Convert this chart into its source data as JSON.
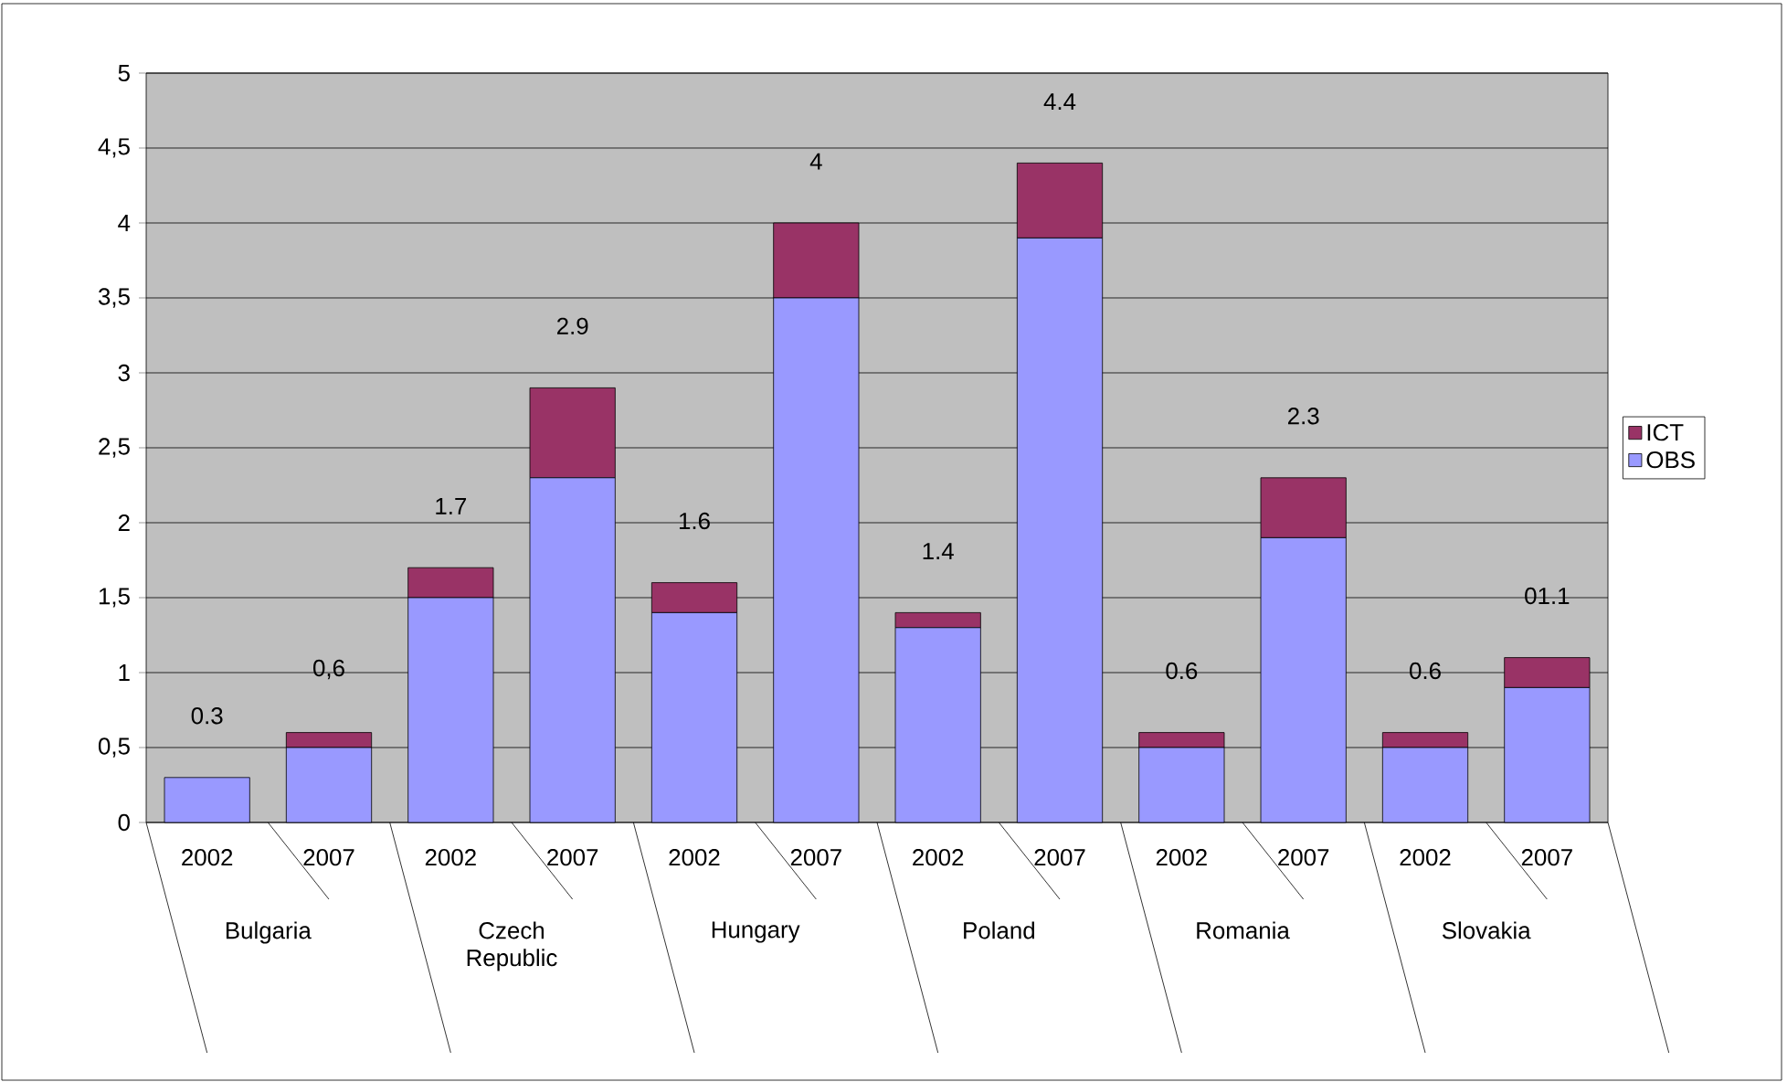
{
  "chart_data": {
    "type": "bar",
    "stacked": true,
    "categories": [
      "2002",
      "2007",
      "2002",
      "2007",
      "2002",
      "2007",
      "2002",
      "2007",
      "2002",
      "2007",
      "2002",
      "2007"
    ],
    "series": [
      {
        "name": "OBS",
        "color": "#9999ff",
        "values": [
          0.3,
          0.5,
          1.5,
          2.3,
          1.4,
          3.5,
          1.3,
          3.9,
          0.5,
          1.9,
          0.5,
          0.9
        ]
      },
      {
        "name": "ICT",
        "color": "#993366",
        "values": [
          0,
          0.1,
          0.2,
          0.6,
          0.2,
          0.5,
          0.1,
          0.5,
          0.1,
          0.4,
          0.1,
          0.2
        ]
      }
    ],
    "totals": [
      "0.3",
      "0,6",
      "1.7",
      "2.9",
      "1.6",
      "4",
      "1.4",
      "4.4",
      "0.6",
      "2.3",
      "0.6",
      "01.1"
    ],
    "annotations": [
      "Bulgaria",
      "Czech Republic",
      "Hungary",
      "Poland",
      "Romania",
      "Slovakia"
    ],
    "ylim": [
      0,
      5
    ],
    "yticks": [
      0,
      {
        "value": 0.5,
        "label": "0,5"
      },
      1,
      {
        "value": 1.5,
        "label": "1,5"
      },
      2,
      {
        "value": 2.5,
        "label": "2,5"
      },
      3,
      {
        "value": 3.5,
        "label": "3,5"
      },
      4,
      {
        "value": 4.5,
        "label": "4,5"
      },
      5
    ],
    "grid": "y",
    "legend": "right"
  }
}
